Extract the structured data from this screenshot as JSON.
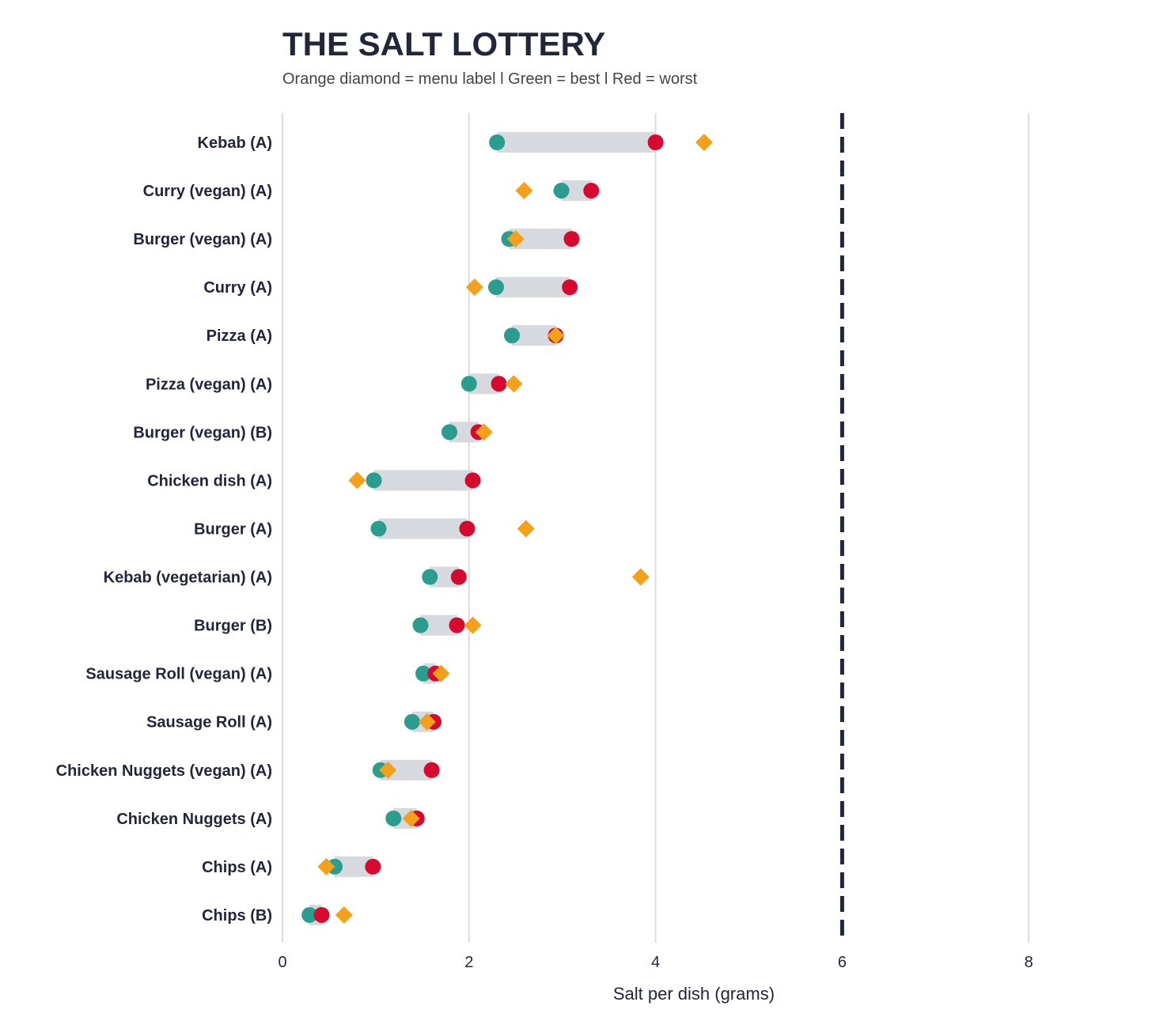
{
  "chart_data": {
    "type": "dot-range",
    "title": "THE SALT LOTTERY",
    "subtitle": "Orange diamond = menu label l Green = best l Red = worst",
    "xlabel": "Salt per dish (grams)",
    "xlim": [
      0,
      8.4
    ],
    "xticks": [
      "0",
      "2",
      "4",
      "6",
      "8"
    ],
    "reference_line": 6,
    "colors": {
      "best": "#2a9d8f",
      "worst": "#d7092f",
      "label": "#f5a01a",
      "range": "#d6d9de",
      "text": "#22263a"
    },
    "rows": [
      {
        "name": "Kebab (A)",
        "best": 2.3,
        "worst": 4.0,
        "label": 4.52
      },
      {
        "name": "Curry (vegan) (A)",
        "best": 2.99,
        "worst": 3.31,
        "label": 2.59
      },
      {
        "name": "Burger (vegan) (A)",
        "best": 2.43,
        "worst": 3.1,
        "label": 2.5
      },
      {
        "name": "Curry (A)",
        "best": 2.29,
        "worst": 3.08,
        "label": 2.06
      },
      {
        "name": "Pizza (A)",
        "best": 2.46,
        "worst": 2.93,
        "label": 2.93
      },
      {
        "name": "Pizza (vegan) (A)",
        "best": 2.0,
        "worst": 2.32,
        "label": 2.48
      },
      {
        "name": "Burger (vegan) (B)",
        "best": 1.79,
        "worst": 2.1,
        "label": 2.16
      },
      {
        "name": "Chicken dish (A)",
        "best": 0.98,
        "worst": 2.04,
        "label": 0.8
      },
      {
        "name": "Burger (A)",
        "best": 1.03,
        "worst": 1.98,
        "label": 2.61
      },
      {
        "name": "Kebab (vegetarian) (A)",
        "best": 1.58,
        "worst": 1.89,
        "label": 3.84
      },
      {
        "name": "Burger (B)",
        "best": 1.48,
        "worst": 1.87,
        "label": 2.04
      },
      {
        "name": "Sausage Roll (vegan) (A)",
        "best": 1.51,
        "worst": 1.64,
        "label": 1.7
      },
      {
        "name": "Sausage Roll (A)",
        "best": 1.39,
        "worst": 1.62,
        "label": 1.55
      },
      {
        "name": "Chicken Nuggets (vegan) (A)",
        "best": 1.05,
        "worst": 1.6,
        "label": 1.13
      },
      {
        "name": "Chicken Nuggets (A)",
        "best": 1.19,
        "worst": 1.44,
        "label": 1.38
      },
      {
        "name": "Chips (A)",
        "best": 0.56,
        "worst": 0.97,
        "label": 0.47
      },
      {
        "name": "Chips (B)",
        "best": 0.29,
        "worst": 0.42,
        "label": 0.66
      }
    ]
  }
}
